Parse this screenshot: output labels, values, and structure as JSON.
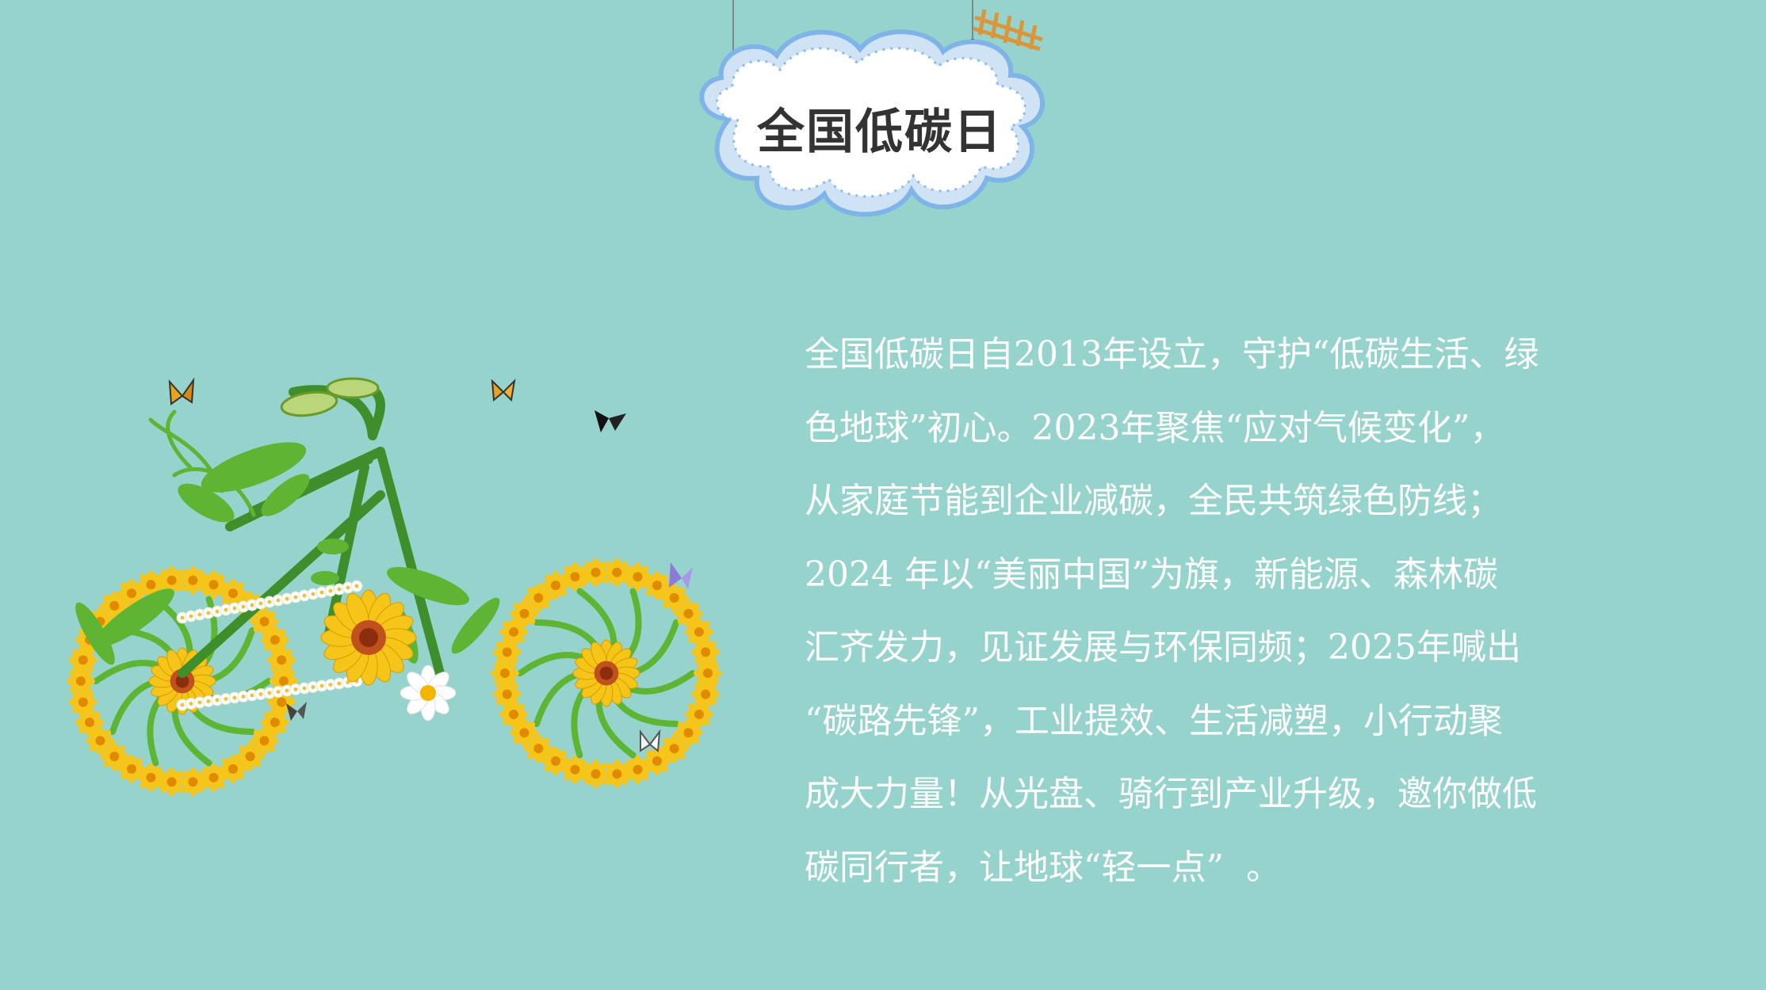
{
  "colors": {
    "background": "#96d3cc",
    "title_text": "#333333",
    "body_text": "#ffffff",
    "cloud_fill": "#ffffff",
    "cloud_border": "#7fb4e8",
    "stem_green": "#3e8f2b",
    "leaf_green": "#5db533",
    "sunflower_yellow": "#f6c51a",
    "sunflower_center": "#c0501c"
  },
  "title": "全国低碳日",
  "body": {
    "lines": [
      "全国低碳日自2013年设立，守护“低碳生活、绿",
      "色地球”初心。2023年聚焦“应对气候变化”，",
      "从家庭节能到企业减碳，全民共筑绿色防线；",
      "2024 年以“美丽中国”为旗，新能源、森林碳",
      "汇齐发力，见证发展与环保同频；2025年喊出",
      "“碳路先锋”，工业提效、生活减塑，小行动聚",
      "成大力量！从光盘、骑行到产业升级，邀你做低",
      "碳同行者，让地球“轻一点”  。"
    ]
  },
  "illustration": {
    "icon": "flower-bicycle-icon"
  }
}
